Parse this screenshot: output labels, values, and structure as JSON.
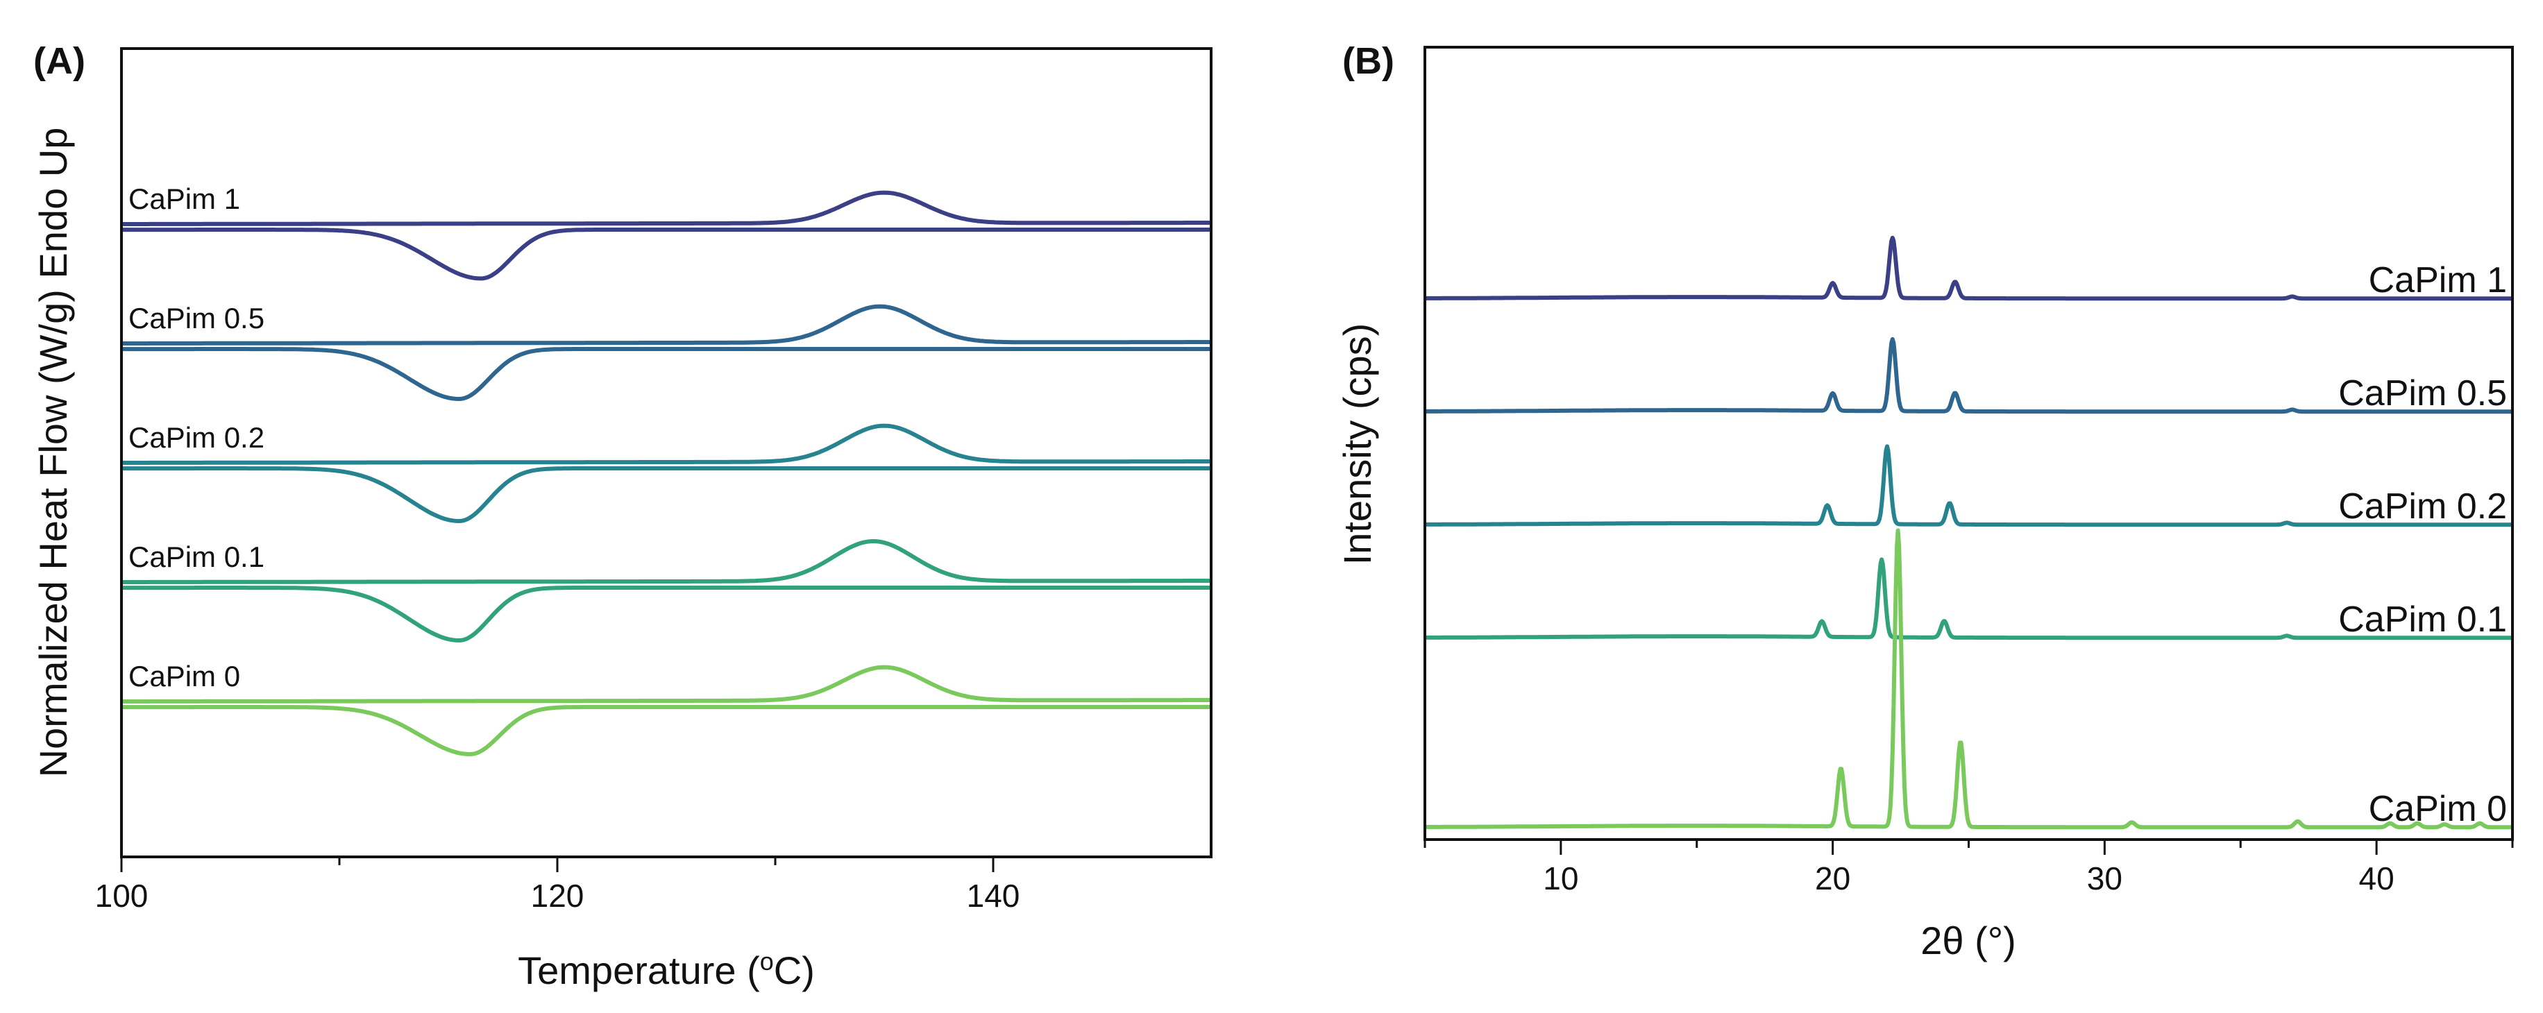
{
  "chart_data": [
    {
      "type": "line",
      "panel_label": "(A)",
      "title": "",
      "xlabel_main": "Temperature (",
      "xlabel_sup": "o",
      "xlabel_end": "C)",
      "ylabel": "Normalized Heat Flow (W/g) Endo Up",
      "xlim": [
        100,
        150
      ],
      "xticks": [
        100,
        120,
        140
      ],
      "xtick_labels": [
        "100",
        "120",
        "140"
      ],
      "minor_xticks": [
        110,
        130
      ],
      "y_tick_labels": false,
      "grid": false,
      "legend": "inline labels left of each curve pair",
      "series": [
        {
          "name": "CaPim 1",
          "color": "#3b3f86",
          "baseline_offset": 4,
          "endo_peak_T": 135.0,
          "endo_height": 0.55,
          "exo_peak_T": 116.5,
          "exo_depth": 0.88
        },
        {
          "name": "CaPim 0.5",
          "color": "#2f6690",
          "baseline_offset": 3,
          "endo_peak_T": 134.8,
          "endo_height": 0.65,
          "exo_peak_T": 115.5,
          "exo_depth": 0.9
        },
        {
          "name": "CaPim 0.2",
          "color": "#26838f",
          "baseline_offset": 2,
          "endo_peak_T": 135.0,
          "endo_height": 0.65,
          "exo_peak_T": 115.5,
          "exo_depth": 0.95
        },
        {
          "name": "CaPim 0.1",
          "color": "#31a27a",
          "baseline_offset": 1,
          "endo_peak_T": 134.5,
          "endo_height": 0.72,
          "exo_peak_T": 115.5,
          "exo_depth": 0.95
        },
        {
          "name": "CaPim 0",
          "color": "#79c95c",
          "baseline_offset": 0,
          "endo_peak_T": 135.0,
          "endo_height": 0.6,
          "exo_peak_T": 116.0,
          "exo_depth": 0.85
        }
      ]
    },
    {
      "type": "line",
      "panel_label": "(B)",
      "title": "",
      "xlabel": "2θ (°)",
      "ylabel": "Intensity (cps)",
      "xlim": [
        5,
        45
      ],
      "xticks": [
        10,
        20,
        30,
        40
      ],
      "xtick_labels": [
        "10",
        "20",
        "30",
        "40"
      ],
      "minor_xticks": [
        5,
        15,
        25,
        35,
        45
      ],
      "y_tick_labels": false,
      "grid": false,
      "legend": "inline labels at right end of each trace",
      "series": [
        {
          "name": "CaPim 1",
          "color": "#3b3f86",
          "baseline_offset": 4,
          "peaks": [
            {
              "two_theta": 20.0,
              "intensity": 0.15
            },
            {
              "two_theta": 22.2,
              "intensity": 0.62
            },
            {
              "two_theta": 24.5,
              "intensity": 0.17
            },
            {
              "two_theta": 36.9,
              "intensity": 0.02
            }
          ]
        },
        {
          "name": "CaPim 0.5",
          "color": "#2f6690",
          "baseline_offset": 3,
          "peaks": [
            {
              "two_theta": 20.0,
              "intensity": 0.18
            },
            {
              "two_theta": 22.2,
              "intensity": 0.74
            },
            {
              "two_theta": 24.5,
              "intensity": 0.19
            },
            {
              "two_theta": 36.9,
              "intensity": 0.02
            }
          ]
        },
        {
          "name": "CaPim 0.2",
          "color": "#26838f",
          "baseline_offset": 2,
          "peaks": [
            {
              "two_theta": 19.8,
              "intensity": 0.19
            },
            {
              "two_theta": 22.0,
              "intensity": 0.8
            },
            {
              "two_theta": 24.3,
              "intensity": 0.22
            },
            {
              "two_theta": 36.7,
              "intensity": 0.02
            }
          ]
        },
        {
          "name": "CaPim 0.1",
          "color": "#31a27a",
          "baseline_offset": 1,
          "peaks": [
            {
              "two_theta": 19.6,
              "intensity": 0.16
            },
            {
              "two_theta": 21.8,
              "intensity": 0.8
            },
            {
              "two_theta": 24.1,
              "intensity": 0.17
            },
            {
              "two_theta": 36.7,
              "intensity": 0.02
            }
          ]
        },
        {
          "name": "CaPim 0",
          "color": "#79c95c",
          "baseline_offset": 0,
          "peaks": [
            {
              "two_theta": 20.3,
              "intensity": 0.6
            },
            {
              "two_theta": 22.4,
              "intensity": 3.05
            },
            {
              "two_theta": 24.7,
              "intensity": 0.88
            },
            {
              "two_theta": 31.0,
              "intensity": 0.05
            },
            {
              "two_theta": 37.1,
              "intensity": 0.06
            },
            {
              "two_theta": 40.5,
              "intensity": 0.04
            },
            {
              "two_theta": 41.5,
              "intensity": 0.04
            },
            {
              "two_theta": 42.5,
              "intensity": 0.03
            },
            {
              "two_theta": 43.8,
              "intensity": 0.04
            }
          ]
        }
      ]
    }
  ]
}
